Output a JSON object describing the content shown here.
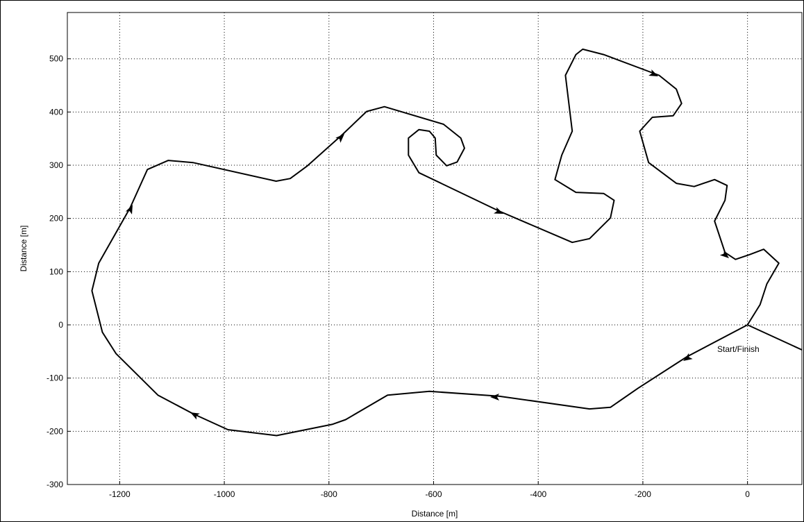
{
  "chart_data": {
    "type": "line",
    "xlabel": "Distance [m]",
    "ylabel": "Distance [m]",
    "annotation": "Start/Finish",
    "color": "#000000",
    "grid": true,
    "xlim": [
      -1300,
      104
    ],
    "ylim": [
      -300,
      587
    ],
    "xticks": [
      -1200,
      -1000,
      -800,
      -600,
      -400,
      -200,
      0
    ],
    "yticks": [
      -300,
      -200,
      -100,
      0,
      100,
      200,
      300,
      400,
      500
    ],
    "x": [
      104,
      0,
      -116,
      -209,
      -262,
      -302,
      -475,
      -608,
      -688,
      -768,
      -794,
      -900,
      -993,
      -1060,
      -1127,
      -1207,
      -1233,
      -1253,
      -1240,
      -1180,
      -1147,
      -1107,
      -1060,
      -901,
      -874,
      -841,
      -774,
      -728,
      -694,
      -581,
      -548,
      -541,
      -555,
      -575,
      -595,
      -597,
      -608,
      -628,
      -648,
      -648,
      -628,
      -475,
      -335,
      -302,
      -262,
      -255,
      -275,
      -328,
      -368,
      -355,
      -335,
      -348,
      -328,
      -315,
      -275,
      -169,
      -136,
      -126,
      -142,
      -182,
      -206,
      -189,
      -136,
      -102,
      -63,
      -39,
      -43,
      -63,
      -43,
      -23,
      4,
      31,
      60,
      37,
      24,
      0
    ],
    "values": [
      -47,
      0,
      -60,
      -119,
      -155,
      -158,
      -134,
      -125,
      -132,
      -178,
      -187,
      -208,
      -197,
      -167,
      -132,
      -54,
      -14,
      64,
      116,
      220,
      292,
      309,
      305,
      270,
      275,
      299,
      358,
      401,
      410,
      377,
      351,
      332,
      306,
      299,
      319,
      351,
      364,
      367,
      351,
      319,
      286,
      214,
      155,
      162,
      201,
      234,
      247,
      249,
      273,
      319,
      364,
      469,
      508,
      518,
      508,
      469,
      443,
      416,
      393,
      390,
      364,
      305,
      266,
      260,
      273,
      262,
      234,
      195,
      136,
      123,
      132,
      142,
      116,
      77,
      38,
      0
    ]
  }
}
